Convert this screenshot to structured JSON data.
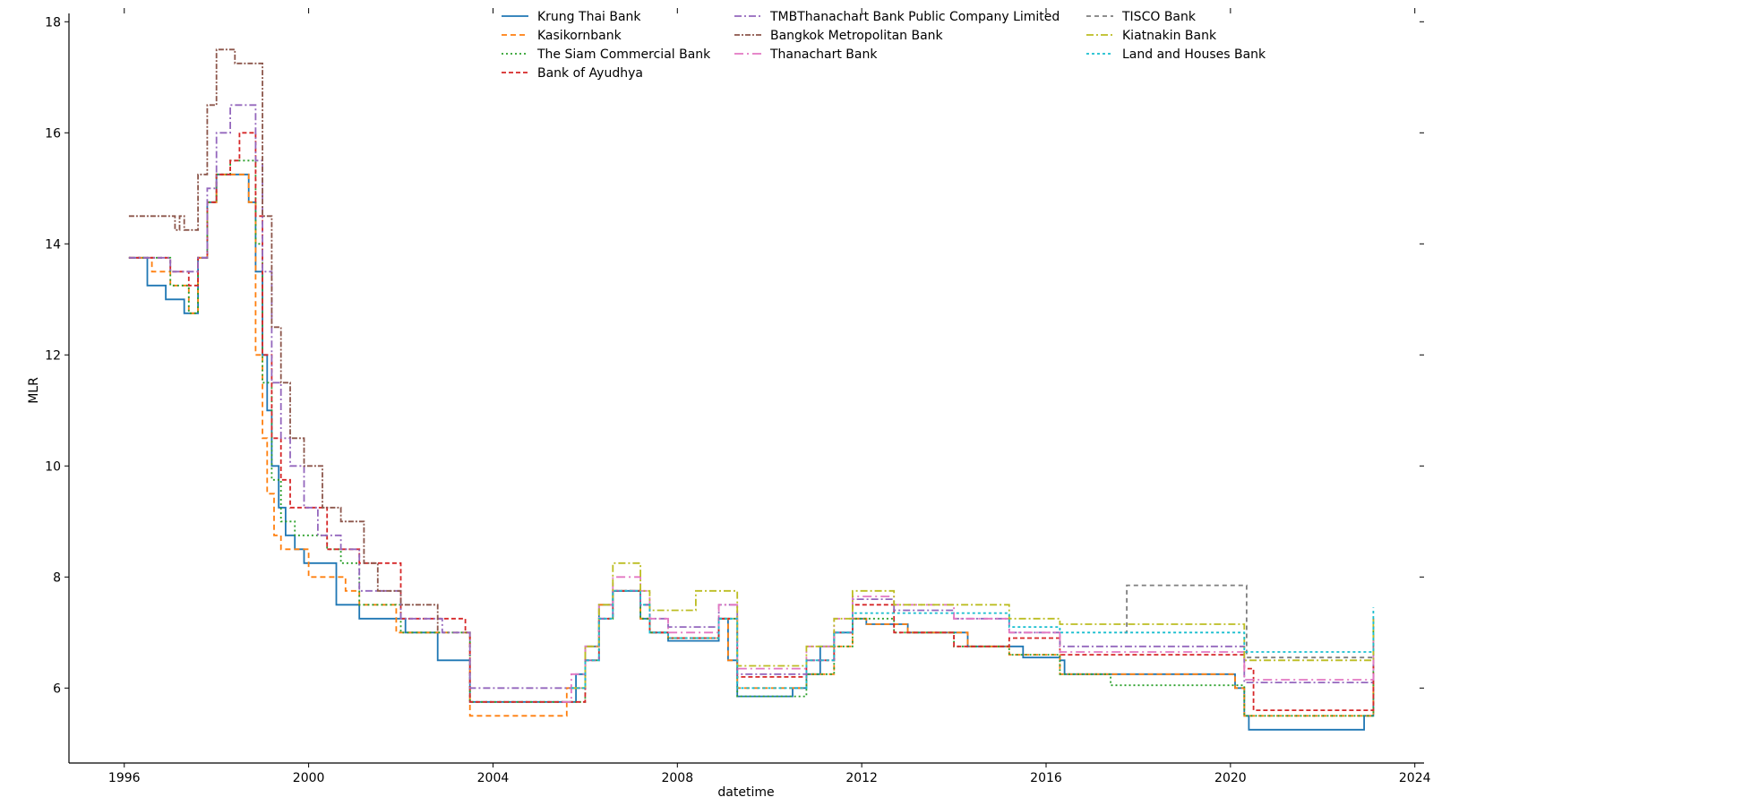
{
  "chart_data": {
    "type": "line",
    "title": "",
    "xlabel": "datetime",
    "ylabel": "MLR",
    "xlim": [
      1994.8,
      2024.2
    ],
    "ylim": [
      4.65,
      18.15
    ],
    "xticks": [
      1996,
      2000,
      2004,
      2008,
      2012,
      2016,
      2020,
      2024
    ],
    "yticks": [
      6,
      8,
      10,
      12,
      14,
      16,
      18
    ],
    "grid": false,
    "legend_position": "top",
    "series": [
      {
        "name": "Krung Thai Bank",
        "color": "#1f77b4",
        "dash": "",
        "x": [
          1996.1,
          1996.5,
          1996.5,
          1996.9,
          1996.9,
          1997.3,
          1997.3,
          1997.5,
          1997.6,
          1997.8,
          1998.0,
          1998.2,
          1998.5,
          1998.7,
          1998.85,
          1999.0,
          1999.1,
          1999.2,
          1999.35,
          1999.5,
          1999.7,
          1999.9,
          2000.3,
          2000.6,
          2000.6,
          2001.1,
          2001.1,
          2002.1,
          2002.1,
          2002.8,
          2002.8,
          2003.5,
          2003.5,
          2005.7,
          2005.8,
          2006.0,
          2006.3,
          2006.6,
          2007.2,
          2007.4,
          2007.8,
          2008.4,
          2008.9,
          2009.1,
          2009.3,
          2010.4,
          2010.5,
          2010.8,
          2011.1,
          2011.4,
          2011.8,
          2012.1,
          2012.7,
          2013.0,
          2014.0,
          2014.3,
          2015.2,
          2015.5,
          2016.3,
          2016.4,
          2019.9,
          2020.1,
          2020.3,
          2020.4,
          2022.8,
          2022.9,
          2023.1
        ],
        "y": [
          13.75,
          13.75,
          13.25,
          13.25,
          13.0,
          13.0,
          12.75,
          12.75,
          13.75,
          14.75,
          15.25,
          15.25,
          15.25,
          14.75,
          13.5,
          12.0,
          11.0,
          10.0,
          9.25,
          8.75,
          8.5,
          8.25,
          8.25,
          8.0,
          7.5,
          7.5,
          7.25,
          7.25,
          7.0,
          7.0,
          6.5,
          6.5,
          5.75,
          5.75,
          6.25,
          6.75,
          7.5,
          7.75,
          7.25,
          7.0,
          6.85,
          6.85,
          7.25,
          6.5,
          5.85,
          5.85,
          6.0,
          6.25,
          6.75,
          7.0,
          7.25,
          7.15,
          7.15,
          7.0,
          7.0,
          6.75,
          6.75,
          6.55,
          6.5,
          6.25,
          6.25,
          6.0,
          5.5,
          5.25,
          5.25,
          5.5,
          6.25
        ]
      },
      {
        "name": "Kasikornbank",
        "color": "#ff7f0e",
        "dash": "6,4",
        "x": [
          1996.1,
          1996.5,
          1996.6,
          1997.0,
          1997.4,
          1997.6,
          1997.8,
          1998.0,
          1998.4,
          1998.7,
          1998.85,
          1999.0,
          1999.1,
          1999.25,
          1999.4,
          1999.7,
          2000.0,
          2000.7,
          2000.8,
          2001.1,
          2001.9,
          2003.4,
          2003.5,
          2005.5,
          2005.6,
          2006.0,
          2006.3,
          2006.6,
          2007.2,
          2007.4,
          2007.8,
          2008.4,
          2008.9,
          2009.1,
          2009.3,
          2010.4,
          2010.8,
          2011.4,
          2011.8,
          2012.1,
          2012.7,
          2013.0,
          2014.0,
          2014.3,
          2015.2,
          2016.3,
          2019.9,
          2020.1,
          2020.3,
          2022.8,
          2023.1
        ],
        "y": [
          13.75,
          13.75,
          13.5,
          13.25,
          12.75,
          13.75,
          14.75,
          15.25,
          15.25,
          14.75,
          12.0,
          10.5,
          9.5,
          8.75,
          8.5,
          8.5,
          8.0,
          8.0,
          7.75,
          7.5,
          7.0,
          7.0,
          5.5,
          5.5,
          6.0,
          6.75,
          7.5,
          7.75,
          7.25,
          7.0,
          6.9,
          6.9,
          7.25,
          6.5,
          6.0,
          6.0,
          6.25,
          6.75,
          7.25,
          7.15,
          7.15,
          7.0,
          7.0,
          6.75,
          6.6,
          6.25,
          6.25,
          6.0,
          5.5,
          5.5,
          6.5
        ]
      },
      {
        "name": "The Siam Commercial Bank",
        "color": "#2ca02c",
        "dash": "2,3",
        "x": [
          1996.1,
          1996.6,
          1997.0,
          1997.4,
          1997.6,
          1997.8,
          1998.0,
          1998.3,
          1998.6,
          1998.85,
          1999.0,
          1999.2,
          1999.4,
          1999.7,
          2000.4,
          2000.7,
          2001.1,
          2002.0,
          2003.4,
          2003.5,
          2005.7,
          2006.0,
          2006.3,
          2006.6,
          2007.2,
          2007.4,
          2007.8,
          2008.4,
          2008.9,
          2009.3,
          2010.4,
          2010.8,
          2011.4,
          2011.8,
          2012.7,
          2014.0,
          2015.2,
          2016.3,
          2017.4,
          2019.9,
          2020.3,
          2022.8,
          2023.1
        ],
        "y": [
          13.75,
          13.75,
          13.25,
          12.75,
          13.75,
          14.75,
          15.25,
          15.5,
          15.5,
          14.0,
          11.5,
          9.75,
          9.0,
          8.75,
          8.5,
          8.25,
          7.5,
          7.0,
          7.0,
          5.75,
          5.75,
          6.5,
          7.25,
          7.75,
          7.25,
          7.0,
          6.9,
          6.9,
          7.25,
          5.85,
          5.85,
          6.25,
          6.75,
          7.25,
          7.0,
          6.75,
          6.6,
          6.25,
          6.05,
          6.05,
          5.5,
          5.5,
          7.25
        ]
      },
      {
        "name": "Bank of Ayudhya",
        "color": "#d62728",
        "dash": "5,3",
        "x": [
          1996.1,
          1996.6,
          1997.0,
          1997.4,
          1997.6,
          1997.8,
          1998.0,
          1998.3,
          1998.5,
          1998.7,
          1998.85,
          1999.0,
          1999.2,
          1999.4,
          1999.6,
          2000.4,
          2001.1,
          2002.0,
          2003.4,
          2003.5,
          2005.7,
          2006.0,
          2006.3,
          2006.6,
          2007.2,
          2007.4,
          2007.8,
          2008.4,
          2008.9,
          2009.3,
          2010.4,
          2010.8,
          2011.4,
          2011.8,
          2012.7,
          2014.0,
          2015.2,
          2016.3,
          2019.9,
          2020.3,
          2020.5,
          2022.8,
          2023.1
        ],
        "y": [
          13.75,
          13.75,
          13.5,
          13.25,
          13.75,
          14.75,
          15.25,
          15.5,
          16.0,
          16.0,
          14.5,
          12.0,
          10.5,
          9.75,
          9.25,
          8.5,
          8.25,
          7.25,
          7.0,
          5.75,
          5.75,
          6.5,
          7.25,
          7.75,
          7.5,
          7.0,
          6.9,
          6.9,
          7.25,
          6.2,
          6.2,
          6.5,
          7.0,
          7.5,
          7.0,
          6.75,
          6.9,
          6.6,
          6.6,
          6.35,
          5.6,
          5.6,
          6.6
        ]
      },
      {
        "name": "TMBThanachart Bank Public Company Limited",
        "color": "#9467bd",
        "dash": "8,3,2,3",
        "x": [
          1996.1,
          1996.6,
          1997.0,
          1997.4,
          1997.6,
          1997.8,
          1998.0,
          1998.3,
          1998.6,
          1998.85,
          1999.0,
          1999.2,
          1999.4,
          1999.6,
          1999.9,
          2000.2,
          2000.7,
          2001.1,
          2002.0,
          2002.9,
          2003.5,
          2005.7,
          2006.0,
          2006.3,
          2006.6,
          2007.2,
          2007.4,
          2007.8,
          2008.4,
          2008.9,
          2009.3,
          2010.4,
          2010.8,
          2011.4,
          2011.8,
          2012.7,
          2014.0,
          2015.2,
          2016.3,
          2019.9,
          2020.3,
          2022.8,
          2023.1
        ],
        "y": [
          13.75,
          13.75,
          13.5,
          13.5,
          13.75,
          15.0,
          16.0,
          16.5,
          16.5,
          15.5,
          13.5,
          11.5,
          10.5,
          10.0,
          9.25,
          8.75,
          8.5,
          7.75,
          7.25,
          7.0,
          6.0,
          6.0,
          6.5,
          7.25,
          7.75,
          7.5,
          7.25,
          7.1,
          7.1,
          7.5,
          6.25,
          6.25,
          6.5,
          7.0,
          7.6,
          7.4,
          7.25,
          7.0,
          6.75,
          6.75,
          6.1,
          6.1,
          7.0
        ]
      },
      {
        "name": "Bangkok Metropolitan Bank",
        "color": "#8c564b",
        "dash": "6,2,2,2",
        "x": [
          1996.1,
          1996.5,
          1996.9,
          1997.1,
          1997.2,
          1997.3,
          1997.5,
          1997.6,
          1997.8,
          1998.0,
          1998.2,
          1998.4,
          1998.6,
          1998.85,
          1999.0,
          1999.2,
          1999.4,
          1999.6,
          1999.9,
          2000.3,
          2000.7,
          2001.2,
          2001.5,
          2002.0,
          2002.8
        ],
        "y": [
          14.5,
          14.5,
          14.5,
          14.25,
          14.5,
          14.25,
          14.25,
          15.25,
          16.5,
          17.5,
          17.5,
          17.25,
          17.25,
          17.25,
          14.5,
          12.5,
          11.5,
          10.5,
          10.0,
          9.25,
          9.0,
          8.25,
          7.75,
          7.5,
          7.0
        ]
      },
      {
        "name": "Thanachart Bank",
        "color": "#e377c2",
        "dash": "10,4,2,4",
        "x": [
          2005.5,
          2005.7,
          2006.0,
          2006.3,
          2006.6,
          2007.2,
          2007.4,
          2007.8,
          2008.4,
          2008.9,
          2009.3,
          2010.4,
          2010.8,
          2011.4,
          2011.8,
          2012.7,
          2014.0,
          2015.2,
          2016.3,
          2019.9,
          2020.3,
          2022.8,
          2023.1
        ],
        "y": [
          5.75,
          6.25,
          6.75,
          7.5,
          8.0,
          7.75,
          7.25,
          7.0,
          7.0,
          7.5,
          6.35,
          6.35,
          6.75,
          7.25,
          7.65,
          7.5,
          7.25,
          7.0,
          6.65,
          6.65,
          6.15,
          6.15,
          6.85
        ]
      },
      {
        "name": "TISCO Bank",
        "color": "#7f7f7f",
        "dash": "5,4",
        "x": [
          2017.7,
          2017.75,
          2020.3,
          2020.35,
          2022.8,
          2023.1
        ],
        "y": [
          7.0,
          7.85,
          7.85,
          6.55,
          6.55,
          7.25
        ]
      },
      {
        "name": "Kiatnakin Bank",
        "color": "#bcbd22",
        "dash": "8,3,2,3",
        "x": [
          2005.7,
          2006.0,
          2006.3,
          2006.6,
          2007.2,
          2007.4,
          2007.8,
          2008.4,
          2008.9,
          2009.3,
          2010.4,
          2010.8,
          2011.4,
          2011.8,
          2012.7,
          2014.0,
          2015.2,
          2016.3,
          2019.9,
          2020.3,
          2022.8,
          2023.1
        ],
        "y": [
          6.0,
          6.75,
          7.5,
          8.25,
          7.75,
          7.4,
          7.4,
          7.75,
          7.75,
          6.4,
          6.4,
          6.75,
          7.25,
          7.75,
          7.5,
          7.5,
          7.25,
          7.15,
          7.15,
          6.5,
          6.5,
          7.25
        ]
      },
      {
        "name": "Land and Houses  Bank",
        "color": "#17becf",
        "dash": "3,3",
        "x": [
          2005.7,
          2006.0,
          2006.3,
          2006.6,
          2007.2,
          2007.4,
          2007.8,
          2008.4,
          2008.9,
          2009.3,
          2010.4,
          2010.8,
          2011.4,
          2011.8,
          2012.7,
          2014.0,
          2015.2,
          2016.3,
          2019.9,
          2020.3,
          2022.8,
          2023.1
        ],
        "y": [
          6.0,
          6.5,
          7.25,
          7.75,
          7.5,
          7.0,
          6.9,
          6.9,
          7.25,
          6.0,
          6.0,
          6.5,
          7.0,
          7.35,
          7.35,
          7.35,
          7.1,
          7.0,
          7.0,
          6.65,
          6.65,
          7.45
        ]
      }
    ]
  }
}
